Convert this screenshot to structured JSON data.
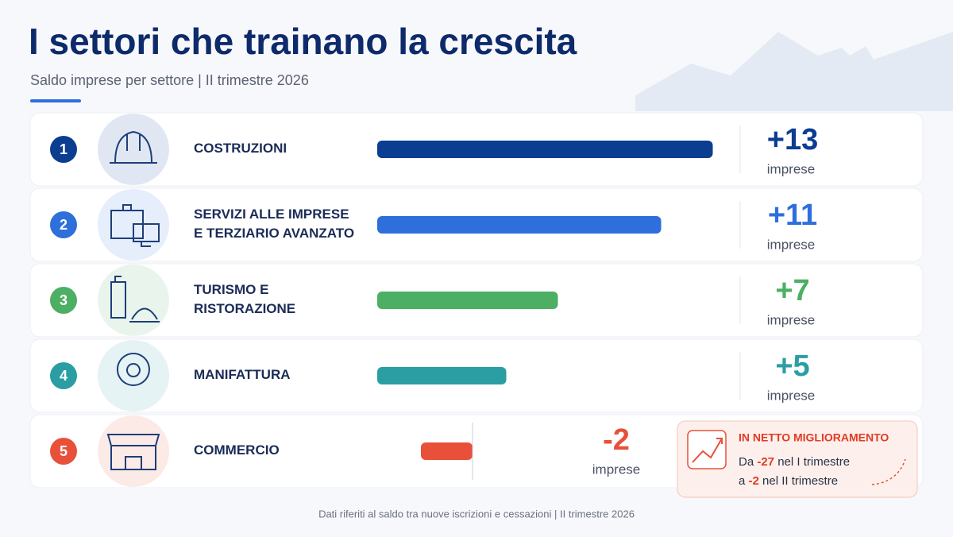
{
  "header": {
    "title": "I settori che trainano la crescita",
    "subtitle": "Saldo imprese per settore | II trimestre 2026"
  },
  "chart_data": {
    "type": "bar",
    "orientation": "horizontal",
    "ranks": [
      1,
      2,
      3,
      4,
      5
    ],
    "categories": [
      [
        "COSTRUZIONI"
      ],
      [
        "SERVIZI ALLE IMPRESE",
        "E TERZIARIO AVANZATO"
      ],
      [
        "TURISMO E",
        "RISTORAZIONE"
      ],
      [
        "MANIFATTURA"
      ],
      [
        "COMMERCIO"
      ]
    ],
    "values": [
      13,
      11,
      7,
      5,
      -2
    ],
    "value_labels": [
      "+13",
      "+11",
      "+7",
      "+5",
      "-2"
    ],
    "unit": "imprese",
    "colors": [
      "#0b3d91",
      "#2e6fdb",
      "#4caf64",
      "#2a9ea3",
      "#e8503a"
    ]
  },
  "callout": {
    "title": "IN NETTO MIGLIORAMENTO",
    "lines": [
      [
        "Da ",
        -27,
        " nel I trimestre"
      ],
      [
        "a ",
        -2,
        " nel II trimestre"
      ]
    ]
  },
  "footer": "Dati riferiti al saldo tra nuove iscrizioni e cessazioni | II trimestre 2026"
}
